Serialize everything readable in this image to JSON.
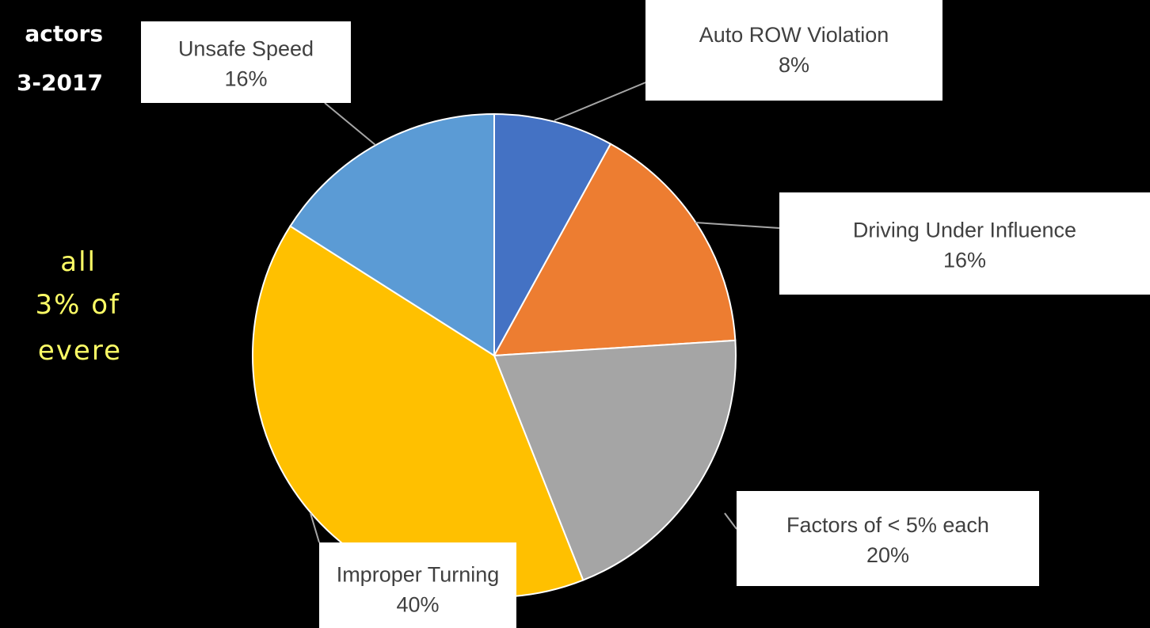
{
  "slide_text": {
    "title_lines": [
      "actors",
      "3-2017"
    ],
    "body_lines": [
      "all",
      "3% of",
      "evere"
    ]
  },
  "chart_data": {
    "type": "pie",
    "categories": [
      "Auto ROW Violation",
      "Driving Under Influence",
      "Factors of < 5% each",
      "Improper Turning",
      "Unsafe Speed"
    ],
    "values": [
      8,
      16,
      20,
      40,
      16
    ],
    "value_labels": [
      "8%",
      "16%",
      "20%",
      "40%",
      "16%"
    ],
    "colors": [
      "#4472c4",
      "#ed7d31",
      "#a5a5a5",
      "#ffc000",
      "#5b9bd5"
    ]
  }
}
